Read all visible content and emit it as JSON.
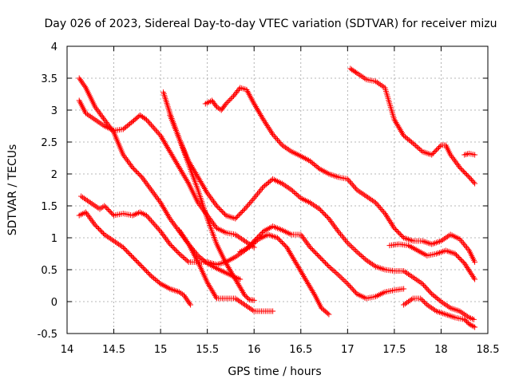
{
  "chart_data": {
    "type": "scatter",
    "title": "Day 026 of 2023, Sidereal Day-to-day VTEC variation (SDTVAR) for receiver mizu",
    "xlabel": "GPS time / hours",
    "ylabel": "SDTVAR / TECUs",
    "xlim": [
      14,
      18.5
    ],
    "ylim": [
      -0.5,
      4
    ],
    "xticks": [
      "14",
      "14.5",
      "15",
      "15.5",
      "16",
      "16.5",
      "17",
      "17.5",
      "18",
      "18.5"
    ],
    "yticks": [
      "-0.5",
      "0",
      "0.5",
      "1",
      "1.5",
      "2",
      "2.5",
      "3",
      "3.5",
      "4"
    ],
    "grid": true,
    "marker": "+",
    "color": "#ff0000",
    "series": [
      {
        "name": "s1",
        "points": [
          [
            14.13,
            3.5
          ],
          [
            14.2,
            3.35
          ],
          [
            14.3,
            3.05
          ],
          [
            14.4,
            2.85
          ],
          [
            14.5,
            2.65
          ],
          [
            14.6,
            2.3
          ],
          [
            14.7,
            2.1
          ],
          [
            14.8,
            1.95
          ],
          [
            14.9,
            1.75
          ],
          [
            15.0,
            1.55
          ],
          [
            15.1,
            1.3
          ],
          [
            15.2,
            1.1
          ],
          [
            15.3,
            0.9
          ],
          [
            15.4,
            0.72
          ],
          [
            15.5,
            0.6
          ],
          [
            15.6,
            0.52
          ],
          [
            15.7,
            0.45
          ],
          [
            15.8,
            0.38
          ],
          [
            15.85,
            0.35
          ]
        ]
      },
      {
        "name": "s2",
        "points": [
          [
            14.13,
            3.15
          ],
          [
            14.2,
            2.95
          ],
          [
            14.3,
            2.85
          ],
          [
            14.4,
            2.75
          ],
          [
            14.5,
            2.68
          ],
          [
            14.6,
            2.7
          ],
          [
            14.7,
            2.82
          ],
          [
            14.78,
            2.92
          ],
          [
            14.85,
            2.85
          ],
          [
            15.0,
            2.6
          ],
          [
            15.1,
            2.35
          ],
          [
            15.2,
            2.1
          ],
          [
            15.3,
            1.85
          ],
          [
            15.4,
            1.55
          ],
          [
            15.5,
            1.35
          ],
          [
            15.6,
            1.15
          ],
          [
            15.7,
            1.08
          ],
          [
            15.8,
            1.05
          ],
          [
            15.9,
            0.95
          ],
          [
            16.0,
            0.85
          ]
        ]
      },
      {
        "name": "s3",
        "points": [
          [
            14.15,
            1.65
          ],
          [
            14.25,
            1.55
          ],
          [
            14.35,
            1.45
          ],
          [
            14.4,
            1.5
          ],
          [
            14.5,
            1.35
          ],
          [
            14.6,
            1.38
          ],
          [
            14.7,
            1.35
          ],
          [
            14.78,
            1.4
          ],
          [
            14.85,
            1.35
          ],
          [
            15.0,
            1.1
          ],
          [
            15.1,
            0.9
          ],
          [
            15.2,
            0.75
          ],
          [
            15.3,
            0.62
          ],
          [
            15.4,
            0.62
          ],
          [
            15.5,
            0.62
          ],
          [
            15.6,
            0.58
          ],
          [
            15.7,
            0.62
          ],
          [
            15.8,
            0.7
          ],
          [
            15.9,
            0.8
          ],
          [
            16.0,
            0.95
          ],
          [
            16.1,
            1.1
          ],
          [
            16.2,
            1.18
          ],
          [
            16.3,
            1.12
          ],
          [
            16.4,
            1.05
          ],
          [
            16.5,
            1.05
          ],
          [
            16.6,
            0.85
          ],
          [
            16.7,
            0.7
          ],
          [
            16.8,
            0.55
          ],
          [
            16.9,
            0.42
          ],
          [
            17.0,
            0.28
          ],
          [
            17.1,
            0.12
          ],
          [
            17.2,
            0.05
          ],
          [
            17.3,
            0.08
          ],
          [
            17.4,
            0.15
          ],
          [
            17.5,
            0.18
          ],
          [
            17.6,
            0.2
          ]
        ]
      },
      {
        "name": "s4",
        "points": [
          [
            14.13,
            1.35
          ],
          [
            14.2,
            1.4
          ],
          [
            14.3,
            1.2
          ],
          [
            14.4,
            1.05
          ],
          [
            14.5,
            0.95
          ],
          [
            14.6,
            0.85
          ],
          [
            14.7,
            0.7
          ],
          [
            14.8,
            0.55
          ],
          [
            14.9,
            0.4
          ],
          [
            15.0,
            0.28
          ],
          [
            15.1,
            0.2
          ],
          [
            15.2,
            0.15
          ],
          [
            15.25,
            0.1
          ],
          [
            15.32,
            -0.05
          ]
        ]
      },
      {
        "name": "s5",
        "points": [
          [
            15.03,
            3.28
          ],
          [
            15.1,
            2.95
          ],
          [
            15.2,
            2.55
          ],
          [
            15.3,
            2.2
          ],
          [
            15.4,
            1.95
          ],
          [
            15.5,
            1.7
          ],
          [
            15.6,
            1.5
          ],
          [
            15.7,
            1.35
          ],
          [
            15.8,
            1.3
          ],
          [
            15.9,
            1.45
          ],
          [
            16.0,
            1.62
          ],
          [
            16.1,
            1.8
          ],
          [
            16.2,
            1.92
          ],
          [
            16.3,
            1.85
          ],
          [
            16.4,
            1.75
          ],
          [
            16.5,
            1.62
          ],
          [
            16.6,
            1.55
          ],
          [
            16.7,
            1.45
          ],
          [
            16.8,
            1.3
          ],
          [
            16.9,
            1.1
          ],
          [
            17.0,
            0.92
          ],
          [
            17.1,
            0.78
          ],
          [
            17.2,
            0.65
          ],
          [
            17.3,
            0.55
          ],
          [
            17.4,
            0.5
          ],
          [
            17.5,
            0.48
          ],
          [
            17.6,
            0.48
          ],
          [
            17.7,
            0.38
          ],
          [
            17.8,
            0.28
          ],
          [
            17.9,
            0.12
          ],
          [
            18.0,
            0.0
          ],
          [
            18.1,
            -0.1
          ],
          [
            18.2,
            -0.15
          ],
          [
            18.3,
            -0.25
          ],
          [
            18.35,
            -0.28
          ]
        ]
      },
      {
        "name": "s6",
        "points": [
          [
            15.1,
            2.92
          ],
          [
            15.2,
            2.55
          ],
          [
            15.3,
            2.15
          ],
          [
            15.4,
            1.75
          ],
          [
            15.5,
            1.3
          ],
          [
            15.6,
            0.9
          ],
          [
            15.7,
            0.6
          ],
          [
            15.8,
            0.35
          ],
          [
            15.9,
            0.1
          ],
          [
            15.95,
            0.03
          ],
          [
            16.0,
            0.02
          ]
        ]
      },
      {
        "name": "s7",
        "points": [
          [
            15.2,
            1.12
          ],
          [
            15.3,
            0.9
          ],
          [
            15.4,
            0.62
          ],
          [
            15.5,
            0.3
          ],
          [
            15.6,
            0.05
          ],
          [
            15.7,
            0.05
          ],
          [
            15.8,
            0.05
          ],
          [
            15.9,
            -0.05
          ],
          [
            16.0,
            -0.15
          ],
          [
            16.1,
            -0.15
          ],
          [
            16.2,
            -0.15
          ]
        ]
      },
      {
        "name": "s8",
        "points": [
          [
            15.48,
            3.1
          ],
          [
            15.55,
            3.15
          ],
          [
            15.6,
            3.05
          ],
          [
            15.65,
            3.0
          ],
          [
            15.7,
            3.1
          ],
          [
            15.78,
            3.22
          ],
          [
            15.85,
            3.35
          ],
          [
            15.92,
            3.32
          ],
          [
            16.0,
            3.1
          ],
          [
            16.1,
            2.85
          ],
          [
            16.2,
            2.62
          ],
          [
            16.3,
            2.45
          ],
          [
            16.4,
            2.35
          ],
          [
            16.5,
            2.28
          ],
          [
            16.6,
            2.2
          ],
          [
            16.7,
            2.08
          ],
          [
            16.8,
            2.0
          ],
          [
            16.9,
            1.95
          ],
          [
            17.0,
            1.92
          ],
          [
            17.1,
            1.75
          ],
          [
            17.2,
            1.65
          ],
          [
            17.3,
            1.55
          ],
          [
            17.4,
            1.38
          ],
          [
            17.5,
            1.15
          ],
          [
            17.6,
            1.0
          ],
          [
            17.7,
            0.95
          ],
          [
            17.8,
            0.95
          ],
          [
            17.9,
            0.9
          ],
          [
            18.0,
            0.95
          ],
          [
            18.1,
            1.05
          ],
          [
            18.2,
            0.98
          ],
          [
            18.3,
            0.8
          ],
          [
            18.36,
            0.62
          ]
        ]
      },
      {
        "name": "s9",
        "points": [
          [
            15.85,
            0.78
          ],
          [
            15.95,
            0.85
          ],
          [
            16.05,
            0.98
          ],
          [
            16.15,
            1.05
          ],
          [
            16.25,
            1.0
          ],
          [
            16.35,
            0.85
          ],
          [
            16.45,
            0.6
          ],
          [
            16.55,
            0.35
          ],
          [
            16.65,
            0.1
          ],
          [
            16.72,
            -0.1
          ],
          [
            16.8,
            -0.2
          ]
        ]
      },
      {
        "name": "s10",
        "points": [
          [
            17.03,
            3.65
          ],
          [
            17.1,
            3.58
          ],
          [
            17.2,
            3.48
          ],
          [
            17.3,
            3.45
          ],
          [
            17.4,
            3.35
          ],
          [
            17.45,
            3.1
          ],
          [
            17.5,
            2.85
          ],
          [
            17.6,
            2.6
          ],
          [
            17.7,
            2.48
          ],
          [
            17.8,
            2.35
          ],
          [
            17.9,
            2.3
          ],
          [
            18.0,
            2.45
          ],
          [
            18.05,
            2.45
          ],
          [
            18.1,
            2.3
          ],
          [
            18.2,
            2.1
          ],
          [
            18.3,
            1.95
          ],
          [
            18.36,
            1.85
          ]
        ]
      },
      {
        "name": "s11",
        "points": [
          [
            18.25,
            2.3
          ],
          [
            18.3,
            2.32
          ],
          [
            18.36,
            2.3
          ]
        ]
      },
      {
        "name": "s12",
        "points": [
          [
            17.45,
            0.88
          ],
          [
            17.55,
            0.9
          ],
          [
            17.65,
            0.88
          ],
          [
            17.75,
            0.8
          ],
          [
            17.85,
            0.72
          ],
          [
            17.95,
            0.75
          ],
          [
            18.05,
            0.8
          ],
          [
            18.15,
            0.75
          ],
          [
            18.25,
            0.6
          ],
          [
            18.36,
            0.35
          ]
        ]
      },
      {
        "name": "s13",
        "points": [
          [
            17.6,
            -0.05
          ],
          [
            17.7,
            0.05
          ],
          [
            17.78,
            0.05
          ],
          [
            17.85,
            -0.05
          ],
          [
            17.95,
            -0.15
          ],
          [
            18.05,
            -0.2
          ],
          [
            18.15,
            -0.25
          ],
          [
            18.25,
            -0.28
          ],
          [
            18.3,
            -0.35
          ],
          [
            18.36,
            -0.4
          ]
        ]
      }
    ]
  }
}
